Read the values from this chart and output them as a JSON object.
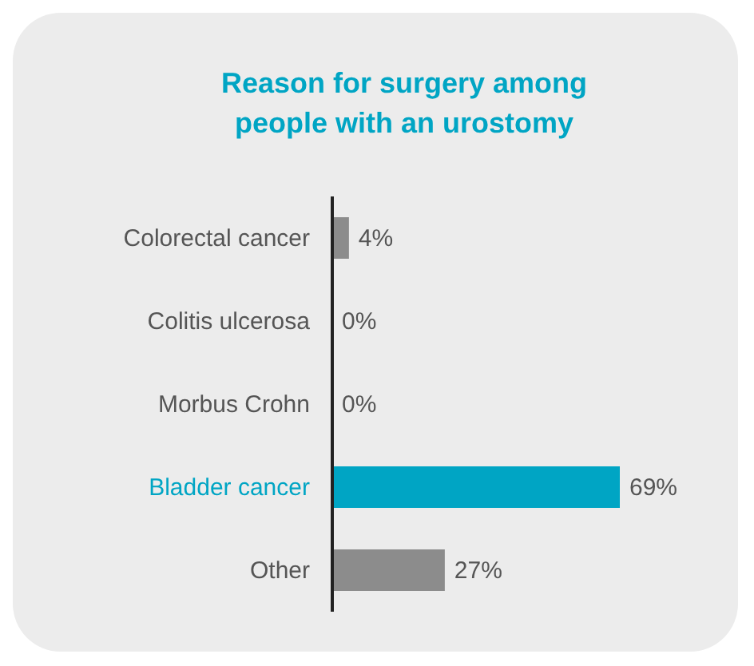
{
  "chart_data": {
    "type": "bar",
    "orientation": "horizontal",
    "title": "Reason for surgery among people with an urostomy",
    "categories": [
      "Colorectal cancer",
      "Colitis ulcerosa",
      "Morbus Crohn",
      "Bladder cancer",
      "Other"
    ],
    "values": [
      4,
      0,
      0,
      69,
      27
    ],
    "colors": [
      "#8c8c8c",
      "#8c8c8c",
      "#8c8c8c",
      "#00a5c4",
      "#8c8c8c"
    ],
    "value_labels": [
      "4%",
      "0%",
      "0%",
      "69%",
      "27%"
    ]
  }
}
